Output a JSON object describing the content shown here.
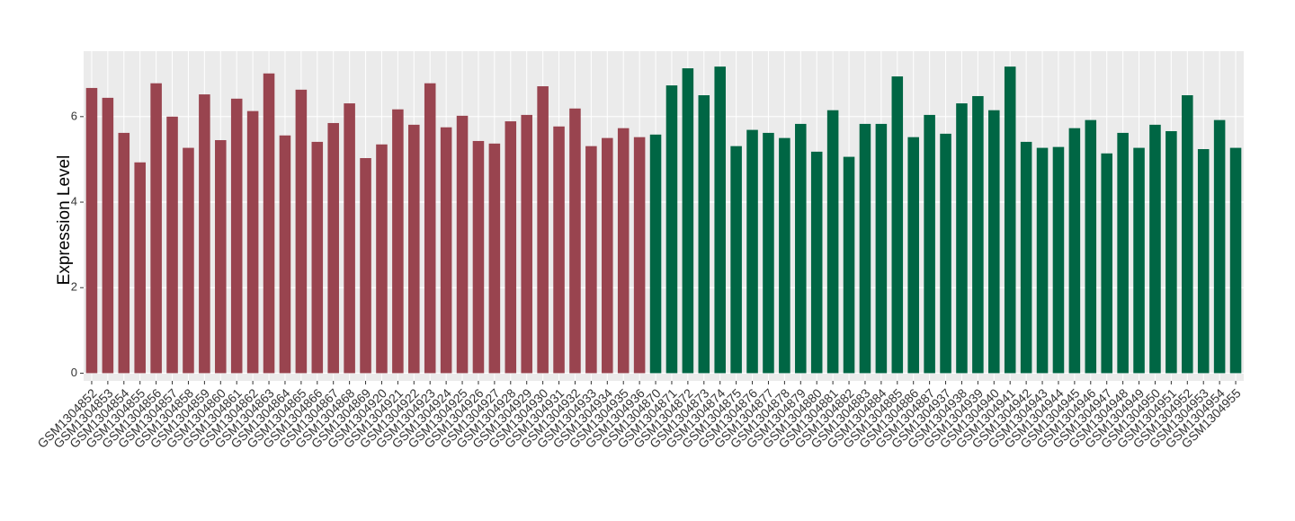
{
  "chart_data": {
    "type": "bar",
    "y_label": "Expression Level",
    "categories": [
      "GSM1304852",
      "GSM1304853",
      "GSM1304854",
      "GSM1304855",
      "GSM1304856",
      "GSM1304857",
      "GSM1304858",
      "GSM1304859",
      "GSM1304860",
      "GSM1304861",
      "GSM1304862",
      "GSM1304863",
      "GSM1304864",
      "GSM1304865",
      "GSM1304866",
      "GSM1304867",
      "GSM1304868",
      "GSM1304869",
      "GSM1304920",
      "GSM1304921",
      "GSM1304922",
      "GSM1304923",
      "GSM1304924",
      "GSM1304925",
      "GSM1304926",
      "GSM1304927",
      "GSM1304928",
      "GSM1304929",
      "GSM1304930",
      "GSM1304931",
      "GSM1304932",
      "GSM1304933",
      "GSM1304934",
      "GSM1304935",
      "GSM1304936",
      "GSM1304870",
      "GSM1304871",
      "GSM1304872",
      "GSM1304873",
      "GSM1304874",
      "GSM1304875",
      "GSM1304876",
      "GSM1304877",
      "GSM1304878",
      "GSM1304879",
      "GSM1304880",
      "GSM1304881",
      "GSM1304882",
      "GSM1304883",
      "GSM1304884",
      "GSM1304885",
      "GSM1304886",
      "GSM1304887",
      "GSM1304937",
      "GSM1304938",
      "GSM1304939",
      "GSM1304940",
      "GSM1304941",
      "GSM1304942",
      "GSM1304943",
      "GSM1304944",
      "GSM1304945",
      "GSM1304946",
      "GSM1304947",
      "GSM1304948",
      "GSM1304949",
      "GSM1304950",
      "GSM1304951",
      "GSM1304952",
      "GSM1304953",
      "GSM1304954",
      "GSM1304955"
    ],
    "values": [
      6.67,
      6.44,
      5.62,
      4.93,
      6.78,
      6.0,
      5.27,
      6.52,
      5.45,
      6.42,
      6.13,
      7.01,
      5.56,
      6.63,
      5.41,
      5.85,
      6.31,
      5.03,
      5.35,
      6.17,
      5.81,
      6.78,
      5.75,
      6.02,
      5.43,
      5.37,
      5.89,
      6.04,
      6.71,
      5.77,
      6.19,
      5.31,
      5.5,
      5.73,
      5.52,
      5.58,
      6.73,
      7.13,
      6.5,
      7.17,
      5.31,
      5.69,
      5.62,
      5.5,
      5.83,
      5.18,
      6.15,
      5.06,
      5.83,
      5.83,
      6.94,
      5.52,
      6.04,
      5.6,
      6.31,
      6.48,
      6.15,
      7.17,
      5.41,
      5.27,
      5.29,
      5.73,
      5.92,
      5.14,
      5.62,
      5.27,
      5.81,
      5.66,
      6.5,
      5.24,
      5.92,
      5.27
    ],
    "colors": [
      "#99444f",
      "#99444f",
      "#99444f",
      "#99444f",
      "#99444f",
      "#99444f",
      "#99444f",
      "#99444f",
      "#99444f",
      "#99444f",
      "#99444f",
      "#99444f",
      "#99444f",
      "#99444f",
      "#99444f",
      "#99444f",
      "#99444f",
      "#99444f",
      "#99444f",
      "#99444f",
      "#99444f",
      "#99444f",
      "#99444f",
      "#99444f",
      "#99444f",
      "#99444f",
      "#99444f",
      "#99444f",
      "#99444f",
      "#99444f",
      "#99444f",
      "#99444f",
      "#99444f",
      "#99444f",
      "#99444f",
      "#006644",
      "#006644",
      "#006644",
      "#006644",
      "#006644",
      "#006644",
      "#006644",
      "#006644",
      "#006644",
      "#006644",
      "#006644",
      "#006644",
      "#006644",
      "#006644",
      "#006644",
      "#006644",
      "#006644",
      "#006644",
      "#006644",
      "#006644",
      "#006644",
      "#006644",
      "#006644",
      "#006644",
      "#006644",
      "#006644",
      "#006644",
      "#006644",
      "#006644",
      "#006644",
      "#006644",
      "#006644",
      "#006644",
      "#006644",
      "#006644",
      "#006644",
      "#006644"
    ],
    "ylim": [
      -0.18,
      7.53
    ],
    "yticks": [
      0,
      2,
      4,
      6
    ],
    "grid": true,
    "panel_color": "#ebebeb"
  }
}
